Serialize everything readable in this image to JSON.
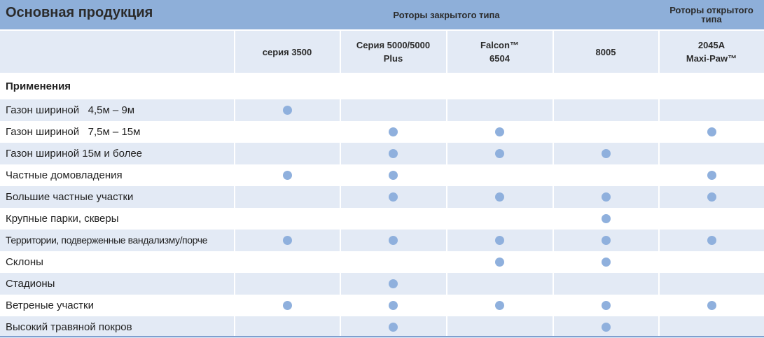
{
  "header": {
    "title": "Основная продукция",
    "group_closed": "Роторы закрытого типа",
    "group_open_line1": "Роторы открытого",
    "group_open_line2": "типа"
  },
  "products": [
    {
      "line1": "серия  3500",
      "line2": ""
    },
    {
      "line1": "Серия 5000/5000",
      "line2": "Plus"
    },
    {
      "line1": "Falcon™",
      "line2": "6504"
    },
    {
      "line1": "8005",
      "line2": ""
    },
    {
      "line1": "2045A",
      "line2": "Maxi-Paw™"
    }
  ],
  "section": "Применения",
  "rows": [
    {
      "label": "Газон шириной   4,5м – 9м",
      "marks": [
        true,
        false,
        false,
        false,
        false
      ]
    },
    {
      "label": "Газон шириной   7,5м – 15м",
      "marks": [
        false,
        true,
        true,
        false,
        true
      ]
    },
    {
      "label": "Газон шириной 15м и более",
      "marks": [
        false,
        true,
        true,
        true,
        false
      ]
    },
    {
      "label": "Частные домовладения",
      "marks": [
        true,
        true,
        false,
        false,
        true
      ]
    },
    {
      "label": "Большие частные участки",
      "marks": [
        false,
        true,
        true,
        true,
        true
      ]
    },
    {
      "label": "Крупные парки, скверы",
      "marks": [
        false,
        false,
        false,
        true,
        false
      ]
    },
    {
      "label": "Территории, подверженные вандализму/порче",
      "marks": [
        true,
        true,
        true,
        true,
        true
      ]
    },
    {
      "label": "Склоны",
      "marks": [
        false,
        false,
        true,
        true,
        false
      ]
    },
    {
      "label": "Стадионы",
      "marks": [
        false,
        true,
        false,
        false,
        false
      ]
    },
    {
      "label": "Ветреные участки",
      "marks": [
        true,
        true,
        true,
        true,
        true
      ]
    },
    {
      "label": "Высокий травяной покров",
      "marks": [
        false,
        true,
        false,
        true,
        false
      ]
    }
  ],
  "colors": {
    "header_band": "#8eafd9",
    "shade": "#e3eaf5",
    "dot": "#8fb0dd"
  }
}
